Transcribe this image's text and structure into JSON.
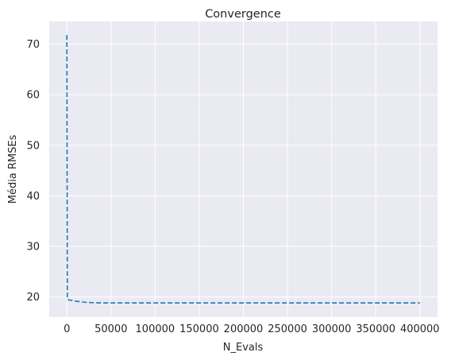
{
  "chart_data": {
    "type": "line",
    "title": "Convergence",
    "xlabel": "N_Evals",
    "ylabel": "Média RMSEs",
    "xlim": [
      -20000,
      420000
    ],
    "ylim": [
      16.0,
      74.5
    ],
    "xticks": [
      0,
      50000,
      100000,
      150000,
      200000,
      250000,
      300000,
      350000,
      400000
    ],
    "yticks": [
      20,
      30,
      40,
      50,
      60,
      70
    ],
    "grid": true,
    "legend": "none",
    "series": [
      {
        "style": "dashed",
        "color": "#1f77b4",
        "x": [
          0,
          500,
          1000,
          2000,
          5000,
          10000,
          15000,
          20000,
          30000,
          40000,
          60000,
          100000,
          200000,
          300000,
          400000
        ],
        "y": [
          71.8,
          19.6,
          19.5,
          19.4,
          19.3,
          19.15,
          19.05,
          18.95,
          18.85,
          18.8,
          18.8,
          18.8,
          18.8,
          18.8,
          18.8
        ]
      }
    ],
    "style": {
      "background": "#eaeaf2",
      "grid_color": "#ffffff"
    }
  }
}
